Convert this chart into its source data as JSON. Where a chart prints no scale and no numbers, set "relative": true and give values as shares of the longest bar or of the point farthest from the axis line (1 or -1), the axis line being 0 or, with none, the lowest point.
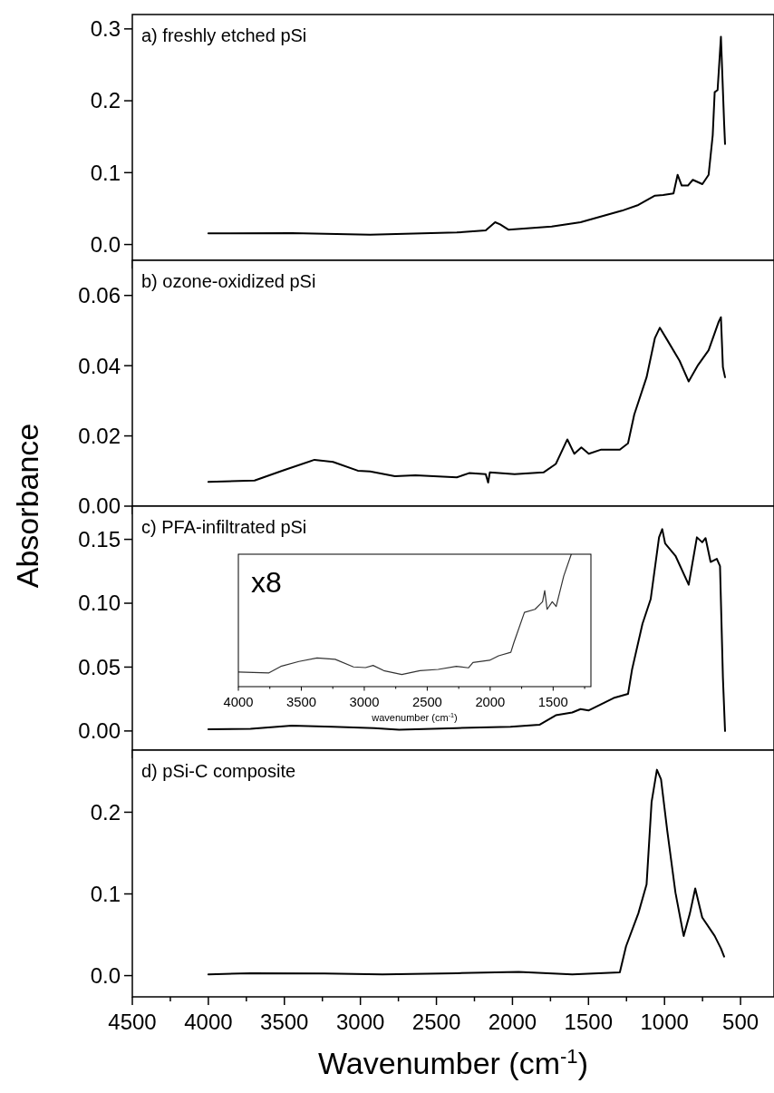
{
  "chart_data": [
    {
      "type": "line",
      "title": "a) freshly etched pSi",
      "ylabel": "Absorbance",
      "color": "#000000",
      "tick_labels": "y",
      "xlim": [
        4500,
        280
      ],
      "ylim": [
        -0.022,
        0.32
      ],
      "xticks": [
        4500,
        {
          "value": 4250,
          "label": null
        },
        4000,
        {
          "value": 3750,
          "label": null
        },
        3500,
        {
          "value": 3250,
          "label": null
        },
        3000,
        {
          "value": 2750,
          "label": null
        },
        2500,
        {
          "value": 2250,
          "label": null
        },
        2000,
        {
          "value": 1750,
          "label": null
        },
        1500,
        {
          "value": 1250,
          "label": null
        },
        1000,
        {
          "value": 750,
          "label": null
        },
        500
      ],
      "yticks": [
        {
          "value": 0,
          "label": "0.0"
        },
        0.1,
        0.2,
        0.3
      ],
      "x": [
        4000,
        3452,
        2936,
        2366,
        2176,
        2114,
        2081,
        2027,
        1742,
        1552,
        1281,
        1172,
        1063,
        1009,
        941,
        914,
        887,
        846,
        814,
        751,
        710,
        683,
        670,
        651,
        629,
        608,
        602
      ],
      "values": [
        0.0155,
        0.016,
        0.0138,
        0.0167,
        0.0195,
        0.031,
        0.028,
        0.0207,
        0.025,
        0.031,
        0.047,
        0.055,
        0.068,
        0.069,
        0.071,
        0.097,
        0.082,
        0.082,
        0.09,
        0.084,
        0.097,
        0.152,
        0.212,
        0.215,
        0.289,
        0.169,
        0.14
      ]
    },
    {
      "type": "line",
      "title": "b) ozone-oxidized pSi",
      "color": "#000000",
      "tick_labels": "y",
      "xlim": [
        4500,
        280
      ],
      "ylim": [
        0,
        0.07
      ],
      "xticks": [
        4500,
        {
          "value": 4250,
          "label": null
        },
        4000,
        {
          "value": 3750,
          "label": null
        },
        3500,
        {
          "value": 3250,
          "label": null
        },
        3000,
        {
          "value": 2750,
          "label": null
        },
        2500,
        {
          "value": 2250,
          "label": null
        },
        2000,
        {
          "value": 1750,
          "label": null
        },
        1500,
        {
          "value": 1250,
          "label": null
        },
        1000,
        {
          "value": 750,
          "label": null
        },
        500
      ],
      "yticks": [
        {
          "value": 0,
          "label": "0.00"
        },
        {
          "value": 0.02,
          "label": "0.02"
        },
        {
          "value": 0.04,
          "label": "0.04"
        },
        {
          "value": 0.06,
          "label": "0.06"
        }
      ],
      "x": [
        4000,
        3696,
        3506,
        3302,
        3180,
        3017,
        2936,
        2773,
        2638,
        2366,
        2285,
        2176,
        2160,
        2149,
        1986,
        1796,
        1715,
        1639,
        1593,
        1547,
        1498,
        1416,
        1294,
        1240,
        1199,
        1118,
        1063,
        1031,
        982,
        901,
        841,
        779,
        710,
        643,
        629,
        616,
        602
      ],
      "values": [
        0.0069,
        0.0073,
        0.0102,
        0.0132,
        0.0126,
        0.0101,
        0.0099,
        0.0085,
        0.0088,
        0.0082,
        0.0094,
        0.0091,
        0.0067,
        0.0096,
        0.0091,
        0.0096,
        0.012,
        0.019,
        0.0149,
        0.0167,
        0.0149,
        0.0161,
        0.0161,
        0.0179,
        0.0261,
        0.0367,
        0.0479,
        0.0508,
        0.0473,
        0.0414,
        0.0355,
        0.0402,
        0.0444,
        0.0526,
        0.0538,
        0.0396,
        0.0367
      ]
    },
    {
      "type": "line",
      "title": "c) PFA-infiltrated pSi",
      "color": "#000000",
      "tick_labels": "y",
      "xlim": [
        4500,
        280
      ],
      "ylim": [
        -0.015,
        0.176
      ],
      "xticks": [
        4500,
        {
          "value": 4250,
          "label": null
        },
        4000,
        {
          "value": 3750,
          "label": null
        },
        3500,
        {
          "value": 3250,
          "label": null
        },
        3000,
        {
          "value": 2750,
          "label": null
        },
        2500,
        {
          "value": 2250,
          "label": null
        },
        2000,
        {
          "value": 1750,
          "label": null
        },
        1500,
        {
          "value": 1250,
          "label": null
        },
        1000,
        {
          "value": 750,
          "label": null
        },
        500
      ],
      "yticks": [
        {
          "value": 0,
          "label": "0.00"
        },
        {
          "value": 0.05,
          "label": "0.05"
        },
        {
          "value": 0.1,
          "label": "0.10"
        },
        {
          "value": 0.15,
          "label": "0.15"
        }
      ],
      "x": [
        4000,
        3723,
        3452,
        3180,
        2909,
        2746,
        2366,
        2013,
        1823,
        1715,
        1607,
        1552,
        1498,
        1416,
        1335,
        1240,
        1213,
        1145,
        1091,
        1036,
        1015,
        996,
        928,
        841,
        787,
        752,
        730,
        697,
        656,
        635,
        616,
        602
      ],
      "values": [
        0.0013,
        0.0016,
        0.0042,
        0.0032,
        0.0023,
        0.001,
        0.0023,
        0.0032,
        0.0048,
        0.0123,
        0.0145,
        0.0171,
        0.0161,
        0.021,
        0.0258,
        0.029,
        0.0484,
        0.0839,
        0.1032,
        0.1516,
        0.158,
        0.1468,
        0.1371,
        0.1145,
        0.1516,
        0.1477,
        0.151,
        0.1323,
        0.1348,
        0.129,
        0.0419,
        0
      ]
    },
    {
      "type": "line",
      "title": "d) pSi-C composite",
      "xlabel": "Wavenumber (cm$^{-1}$)",
      "color": "#000000",
      "xlim": [
        4500,
        280
      ],
      "ylim": [
        -0.026,
        0.276
      ],
      "xticks": [
        4500,
        {
          "value": 4250,
          "label": null
        },
        4000,
        {
          "value": 3750,
          "label": null
        },
        3500,
        {
          "value": 3250,
          "label": null
        },
        3000,
        {
          "value": 2750,
          "label": null
        },
        2500,
        {
          "value": 2250,
          "label": null
        },
        2000,
        {
          "value": 1750,
          "label": null
        },
        1500,
        {
          "value": 1250,
          "label": null
        },
        1000,
        {
          "value": 750,
          "label": null
        },
        500
      ],
      "yticks": [
        {
          "value": 0,
          "label": "0.0"
        },
        0.1,
        0.2
      ],
      "x": [
        4000,
        3723,
        3235,
        2855,
        2366,
        1959,
        1607,
        1294,
        1253,
        1172,
        1118,
        1085,
        1050,
        1023,
        982,
        928,
        874,
        833,
        798,
        752,
        670,
        629,
        608
      ],
      "values": [
        0.0015,
        0.003,
        0.0025,
        0.0015,
        0.003,
        0.0045,
        0.0015,
        0.004,
        0.0359,
        0.0763,
        0.1116,
        0.2126,
        0.252,
        0.2404,
        0.1773,
        0.1015,
        0.0485,
        0.0763,
        0.1066,
        0.0712,
        0.0485,
        0.0333,
        0.0232
      ]
    },
    {
      "type": "line",
      "relative": true,
      "xlabel": "wavenumber (cm$^{-1}$)",
      "annotations": [
        "x8"
      ],
      "color": "#333333",
      "tick_labels": "x",
      "xlim": [
        4000,
        1200
      ],
      "xticks": [
        4000,
        {
          "value": 3750,
          "label": null
        },
        3500,
        {
          "value": 3250,
          "label": null
        },
        3000,
        {
          "value": 2750,
          "label": null
        },
        2500,
        {
          "value": 2250,
          "label": null
        },
        2000,
        {
          "value": 1750,
          "label": null
        },
        1500,
        {
          "value": 1250,
          "label": null
        }
      ],
      "x": [
        4000,
        3760,
        3663,
        3519,
        3375,
        3231,
        3086,
        2990,
        2930,
        2846,
        2702,
        2558,
        2413,
        2269,
        2173,
        2137,
        2005,
        1933,
        1836,
        1812,
        1728,
        1644,
        1584,
        1567,
        1548,
        1507,
        1476,
        1416,
        1356
      ],
      "values": [
        0.11,
        0.103,
        0.153,
        0.19,
        0.217,
        0.206,
        0.149,
        0.144,
        0.16,
        0.121,
        0.092,
        0.121,
        0.13,
        0.153,
        0.142,
        0.183,
        0.199,
        0.233,
        0.259,
        0.332,
        0.561,
        0.584,
        0.641,
        0.725,
        0.584,
        0.641,
        0.606,
        0.835,
        1.0
      ]
    }
  ]
}
